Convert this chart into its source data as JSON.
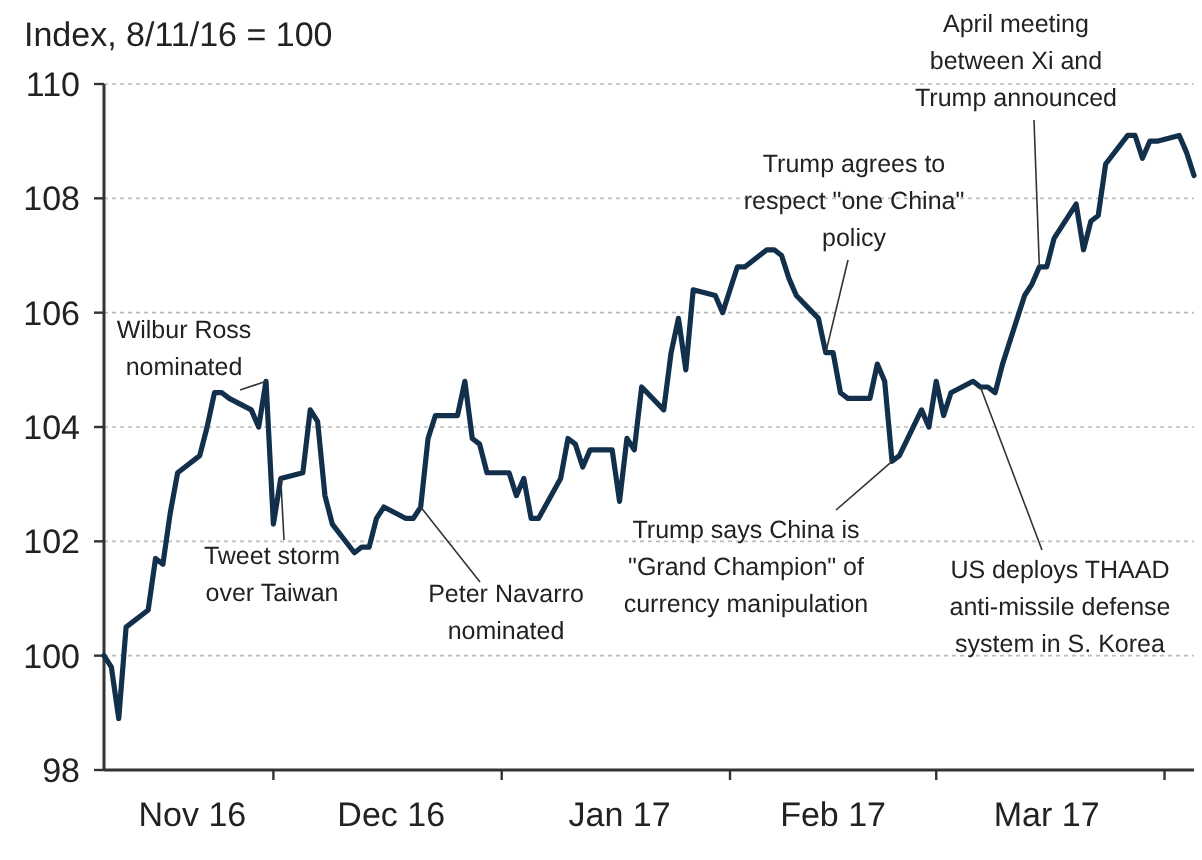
{
  "chart_data": {
    "type": "line",
    "ylabel": "Index, 8/11/16 = 100",
    "color": "#12304b",
    "x": [
      "2016-11-08",
      "2016-11-09",
      "2016-11-10",
      "2016-11-11",
      "2016-11-14",
      "2016-11-15",
      "2016-11-16",
      "2016-11-17",
      "2016-11-18",
      "2016-11-21",
      "2016-11-22",
      "2016-11-23",
      "2016-11-24",
      "2016-11-25",
      "2016-11-28",
      "2016-11-29",
      "2016-11-30",
      "2016-12-01",
      "2016-12-02",
      "2016-12-05",
      "2016-12-06",
      "2016-12-07",
      "2016-12-08",
      "2016-12-09",
      "2016-12-12",
      "2016-12-13",
      "2016-12-14",
      "2016-12-15",
      "2016-12-16",
      "2016-12-19",
      "2016-12-20",
      "2016-12-21",
      "2016-12-22",
      "2016-12-23",
      "2016-12-26",
      "2016-12-27",
      "2016-12-28",
      "2016-12-29",
      "2016-12-30",
      "2017-01-02",
      "2017-01-03",
      "2017-01-04",
      "2017-01-05",
      "2017-01-06",
      "2017-01-09",
      "2017-01-10",
      "2017-01-11",
      "2017-01-12",
      "2017-01-13",
      "2017-01-16",
      "2017-01-17",
      "2017-01-18",
      "2017-01-19",
      "2017-01-20",
      "2017-01-23",
      "2017-01-24",
      "2017-01-25",
      "2017-01-26",
      "2017-01-27",
      "2017-01-30",
      "2017-01-31",
      "2017-02-01",
      "2017-02-02",
      "2017-02-03",
      "2017-02-06",
      "2017-02-07",
      "2017-02-08",
      "2017-02-09",
      "2017-02-10",
      "2017-02-13",
      "2017-02-14",
      "2017-02-15",
      "2017-02-16",
      "2017-02-17",
      "2017-02-20",
      "2017-02-21",
      "2017-02-22",
      "2017-02-23",
      "2017-02-24",
      "2017-02-27",
      "2017-02-28",
      "2017-03-01",
      "2017-03-02",
      "2017-03-03",
      "2017-03-06",
      "2017-03-07",
      "2017-03-08",
      "2017-03-09",
      "2017-03-10",
      "2017-03-13",
      "2017-03-14",
      "2017-03-15",
      "2017-03-16",
      "2017-03-17",
      "2017-03-20",
      "2017-03-21",
      "2017-03-22",
      "2017-03-23",
      "2017-03-24",
      "2017-03-27",
      "2017-03-28",
      "2017-03-29",
      "2017-03-30",
      "2017-03-31",
      "2017-04-03",
      "2017-04-04",
      "2017-04-05"
    ],
    "values": [
      100,
      99.8,
      98.9,
      100.5,
      100.8,
      101.7,
      101.6,
      102.5,
      103.2,
      103.5,
      104.0,
      104.6,
      104.6,
      104.5,
      104.3,
      104.0,
      104.8,
      102.3,
      103.1,
      103.2,
      104.3,
      104.1,
      102.8,
      102.3,
      101.8,
      101.9,
      101.9,
      102.4,
      102.6,
      102.4,
      102.4,
      102.6,
      103.8,
      104.2,
      104.2,
      104.8,
      103.8,
      103.7,
      103.2,
      103.2,
      102.8,
      103.1,
      102.4,
      102.4,
      103.1,
      103.8,
      103.7,
      103.3,
      103.6,
      103.6,
      102.7,
      103.8,
      103.6,
      104.7,
      104.3,
      105.3,
      105.9,
      105.0,
      106.4,
      106.3,
      106.0,
      106.4,
      106.8,
      106.8,
      107.1,
      107.1,
      107.0,
      106.6,
      106.3,
      105.9,
      105.3,
      105.3,
      104.6,
      104.5,
      104.5,
      105.1,
      104.8,
      103.4,
      103.5,
      104.3,
      104.0,
      104.8,
      104.2,
      104.6,
      104.8,
      104.7,
      104.7,
      104.6,
      105.1,
      106.3,
      106.5,
      106.8,
      106.8,
      107.3,
      107.9,
      107.1,
      107.6,
      107.7,
      108.6,
      109.1,
      109.1,
      108.7,
      109.0,
      109.0,
      109.1,
      108.8,
      108.4
    ],
    "xlim": [
      "2016-11-08",
      "2017-04-05"
    ],
    "xticks": [
      {
        "value": "2016-11-20",
        "label": "Nov 16"
      },
      {
        "value": "2016-12-01",
        "label": null
      },
      {
        "value": "2016-12-17",
        "label": "Dec 16"
      },
      {
        "value": "2017-01-01",
        "label": null
      },
      {
        "value": "2017-01-17",
        "label": "Jan 17"
      },
      {
        "value": "2017-02-01",
        "label": null
      },
      {
        "value": "2017-02-15",
        "label": "Feb 17"
      },
      {
        "value": "2017-03-01",
        "label": null
      },
      {
        "value": "2017-03-16",
        "label": "Mar 17"
      },
      {
        "value": "2017-04-01",
        "label": null
      }
    ],
    "ylim": [
      98,
      110
    ],
    "yticks": [
      98,
      100,
      102,
      104,
      106,
      108,
      110
    ],
    "grid": "y",
    "annotations": [
      {
        "text": "Wilbur Ross\nnominated",
        "x": "2016-11-30",
        "y": 104.8
      },
      {
        "text": "Tweet storm\nover Taiwan",
        "x": "2016-12-02",
        "y": 103.1
      },
      {
        "text": "Peter Navarro\nnominated",
        "x": "2016-12-21",
        "y": 102.6
      },
      {
        "text": "Trump says China is\n\"Grand Champion\" of\ncurrency manipulation",
        "x": "2017-02-23",
        "y": 103.4
      },
      {
        "text": "Trump agrees to\nrespect \"one China\"\npolicy",
        "x": "2017-02-14",
        "y": 105.3
      },
      {
        "text": "US deploys THAAD\nanti-missile defense\nsystem in S. Korea",
        "x": "2017-03-07",
        "y": 104.7
      },
      {
        "text": "April meeting\nbetween Xi and\nTrump announced",
        "x": "2017-03-15",
        "y": 106.8
      }
    ]
  }
}
